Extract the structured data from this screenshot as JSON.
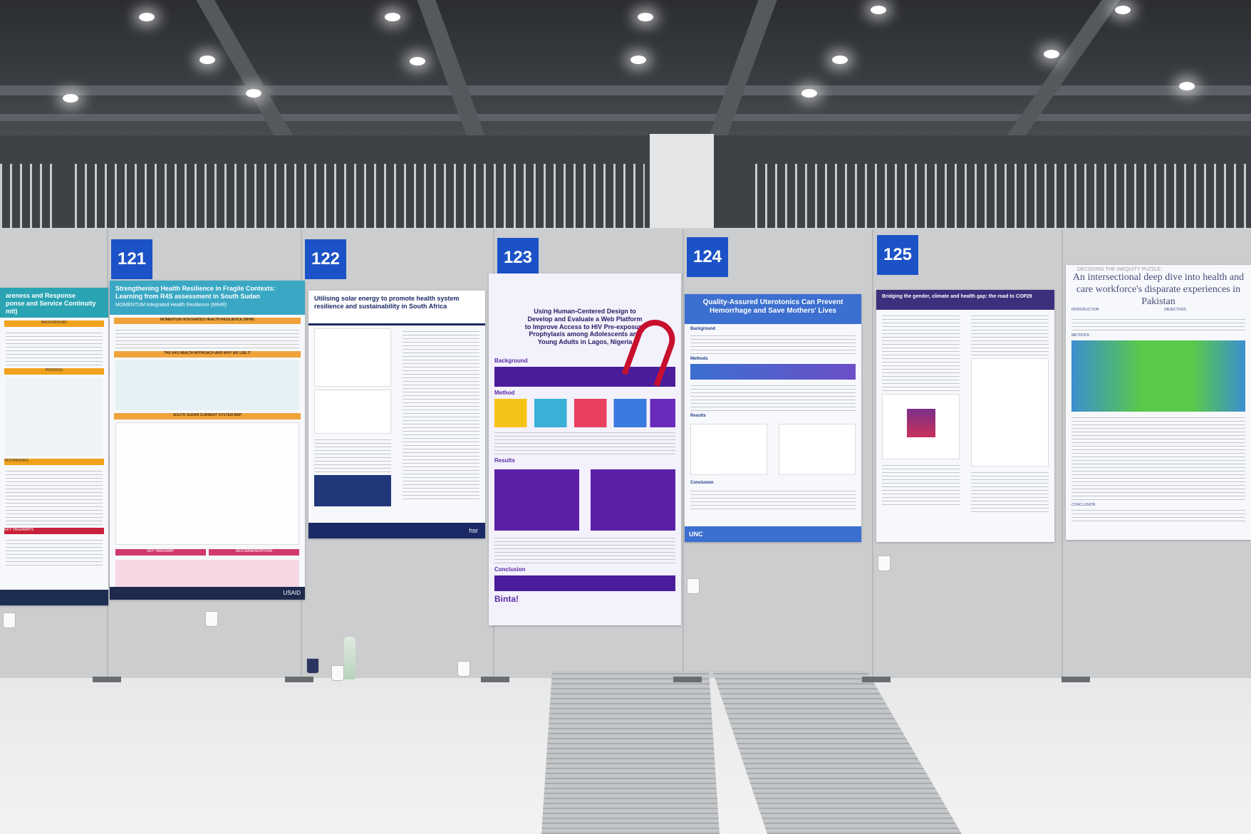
{
  "stands": [
    "121",
    "122",
    "123",
    "124",
    "125"
  ],
  "posters": {
    "p0": {
      "title": "areness and Response\nponse and Service Continuity\nmit)",
      "sections": [
        "BACKGROUND",
        "PROCESS",
        "TESTIMONIES",
        "KEY TAKEAWAYS"
      ]
    },
    "p121": {
      "title": "Strengthening Health Resilience in Fragile Contexts: Learning from R4S assessment in South Sudan",
      "subtitle": "MOMENTUM Integrated Health Resilience (MIHR)",
      "sections": [
        "MOMENTUM INTEGRATED HEALTH RESILIENCE (MIHR)",
        "THE R4S HEALTH APPROACH AND WHY WE USE IT",
        "SOUTH SUDAN CURRENT SYSTEM MAP",
        "KEY TAKEAWAY",
        "RECOMMENDATIONS"
      ],
      "logo": "USAID"
    },
    "p122": {
      "title": "Utilising solar energy to promote health system resilience and sustainability in South Africa",
      "logo": "hsr"
    },
    "p123": {
      "title": "Using Human-Centered Design to Develop and Evaluate a Web Platform to Improve Access to HIV Pre-exposure Prophylaxis among Adolescents and Young Adults in Lagos, Nigeria",
      "sections": [
        "Background",
        "Method",
        "Results",
        "Conclusion"
      ],
      "logo": "Binta!"
    },
    "p124": {
      "title": "Quality-Assured Uterotonics Can Prevent Hemorrhage and Save Mothers' Lives",
      "sections": [
        "Background",
        "Methods",
        "Results",
        "Conclusion"
      ],
      "logo": "UNC"
    },
    "p125": {
      "title": "Bridging the gender, climate and health gap: the road to COP29"
    },
    "p126": {
      "title": "An intersectional deep dive into health and care workforce's disparate experiences in Pakistan",
      "kicker": "DECODING THE INEQUITY PUZZLE:",
      "sections": [
        "INTRODUCTION",
        "OBJECTIVES",
        "METHODS",
        "CONCLUSION"
      ]
    }
  }
}
